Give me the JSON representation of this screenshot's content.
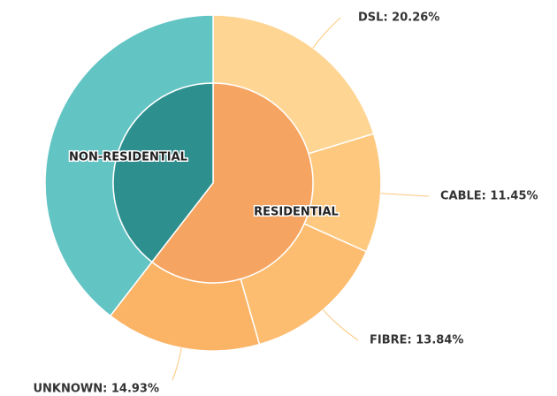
{
  "chart_data": {
    "type": "sunburst",
    "inner": {
      "categories": [
        "RESIDENTIAL",
        "NON-RESIDENTIAL"
      ],
      "values": [
        60.48,
        39.52
      ],
      "colors": [
        "#f6a461",
        "#2e8f8f"
      ]
    },
    "outer": {
      "values": [
        20.26,
        11.45,
        13.84,
        14.93,
        39.52
      ],
      "value_labels": [
        "DSL: 20.26%",
        "CABLE: 11.45%",
        "FIBRE: 13.84%",
        "UNKNOWN: 14.93%",
        null
      ],
      "colors": [
        "#fed593",
        "#fec97f",
        "#fdbd70",
        "#fbb365",
        "#63c4c4"
      ]
    },
    "leader_color": "#fdc77a"
  }
}
